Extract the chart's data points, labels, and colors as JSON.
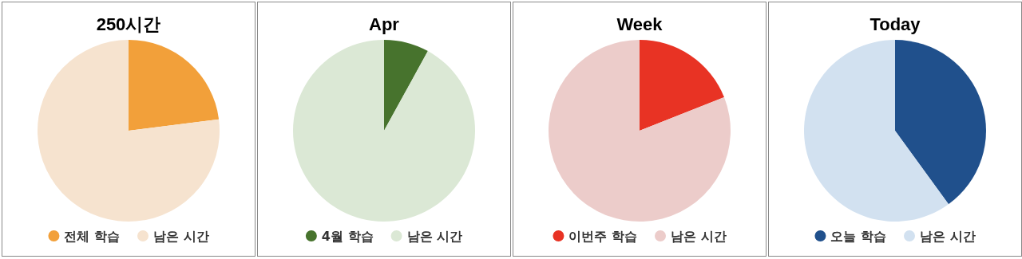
{
  "chart_data": [
    {
      "type": "pie",
      "title": "250시간",
      "categories": [
        "전체 학습",
        "남은 시간"
      ],
      "values": [
        23,
        77
      ],
      "colors": [
        "#f2a03a",
        "#f6e3cf"
      ],
      "legend": "bottom"
    },
    {
      "type": "pie",
      "title": "Apr",
      "categories": [
        "4월 학습",
        "남은 시간"
      ],
      "values": [
        8,
        92
      ],
      "colors": [
        "#47732d",
        "#dbe8d5"
      ],
      "legend": "bottom"
    },
    {
      "type": "pie",
      "title": "Week",
      "categories": [
        "이번주 학습",
        "남은 시간"
      ],
      "values": [
        19,
        81
      ],
      "colors": [
        "#e83324",
        "#ecccca"
      ],
      "legend": "bottom"
    },
    {
      "type": "pie",
      "title": "Today",
      "categories": [
        "오늘 학습",
        "남은 시간"
      ],
      "values": [
        40,
        60
      ],
      "colors": [
        "#20508c",
        "#d2e1f0"
      ],
      "legend": "bottom"
    }
  ]
}
